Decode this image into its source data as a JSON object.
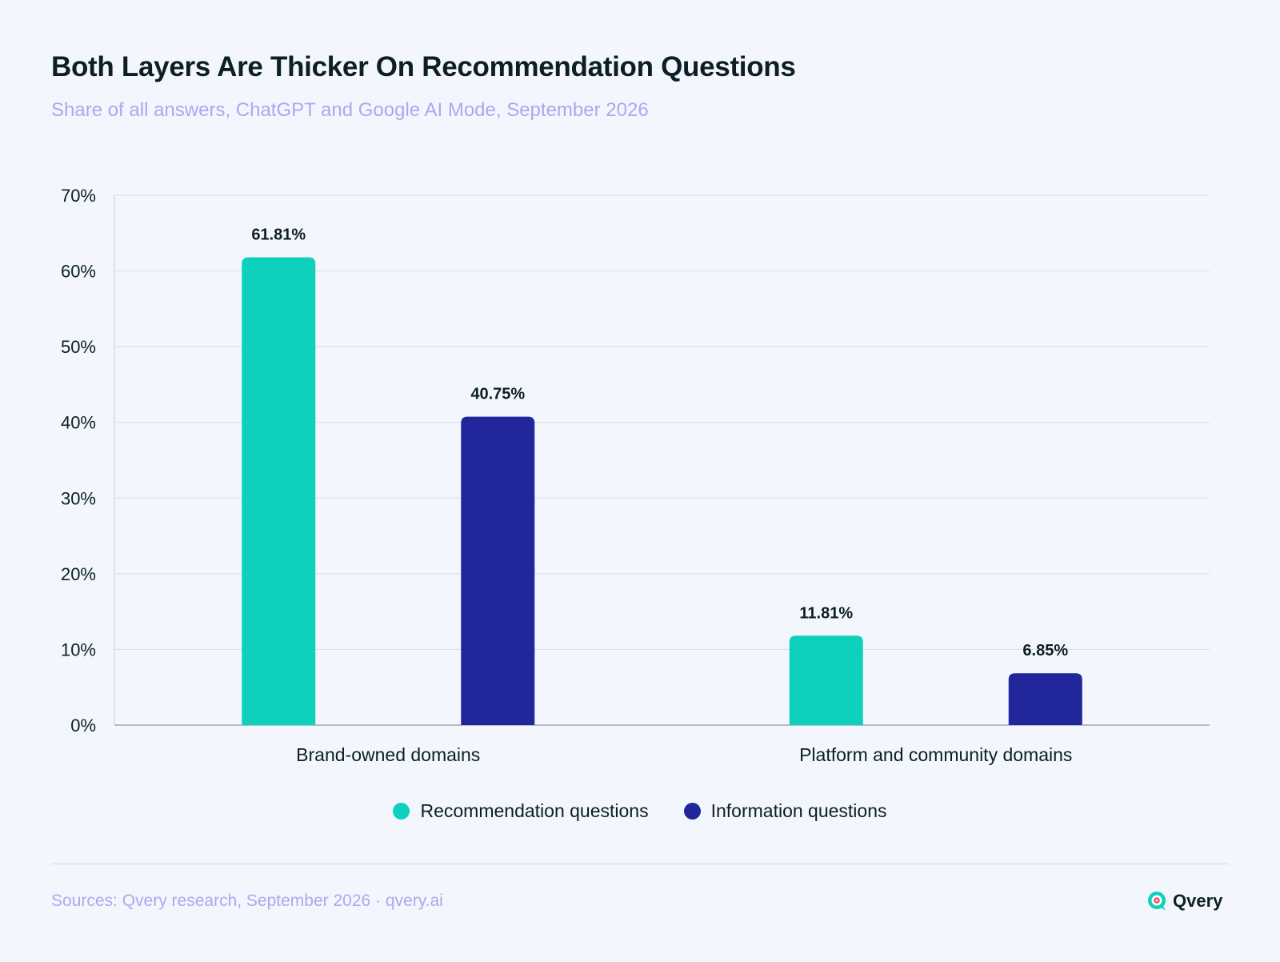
{
  "header": {
    "title": "Both Layers Are Thicker On Recommendation Questions",
    "subtitle": "Share of all answers, ChatGPT and Google AI Mode, September 2026"
  },
  "chart_data": {
    "type": "bar",
    "title": "Both Layers Are Thicker On Recommendation Questions",
    "subtitle": "Share of all answers, ChatGPT and Google AI Mode, September 2026",
    "xlabel": "",
    "ylabel": "",
    "categories": [
      "Brand-owned domains",
      "Platform and community domains"
    ],
    "series": [
      {
        "name": "Recommendation questions",
        "values": [
          61.81,
          11.81
        ],
        "color": "#0dd1bd"
      },
      {
        "name": "Information questions",
        "values": [
          40.75,
          6.85
        ],
        "color": "#21279a"
      }
    ],
    "ylim": [
      0,
      70
    ],
    "yticks": [
      0,
      10,
      20,
      30,
      40,
      50,
      60,
      70
    ],
    "ytick_labels": [
      "0%",
      "10%",
      "20%",
      "30%",
      "40%",
      "50%",
      "60%",
      "70%"
    ],
    "data_labels": [
      [
        "61.81%",
        "11.81%"
      ],
      [
        "40.75%",
        "6.85%"
      ]
    ],
    "grid": true,
    "legend": "bottom-center"
  },
  "legend": {
    "items": [
      {
        "label": "Recommendation questions",
        "color": "#0dd1bd"
      },
      {
        "label": "Information questions",
        "color": "#21279a"
      }
    ]
  },
  "footer": {
    "sources": "Sources: Qvery research, September 2026 · qvery.ai",
    "brand": "Qvery",
    "logo_icon": "qvery-logo-icon"
  }
}
